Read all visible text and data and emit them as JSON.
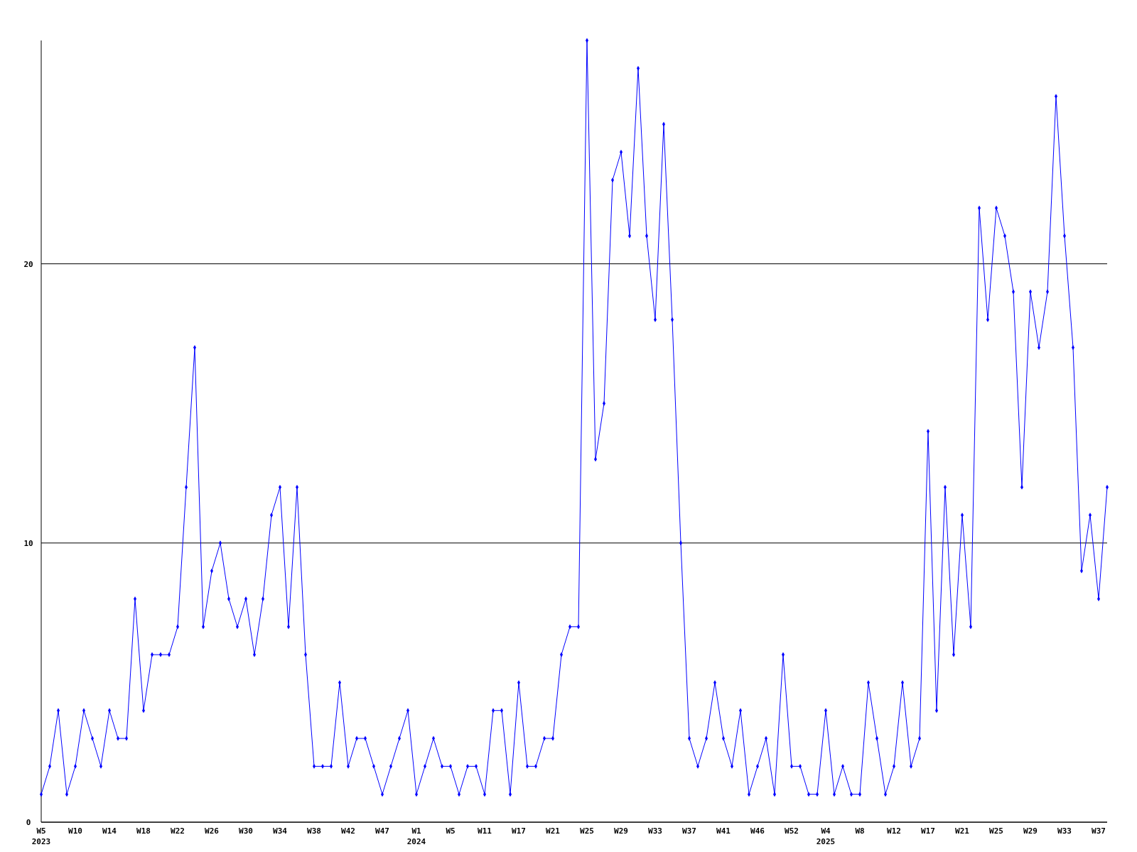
{
  "chart_data": {
    "type": "line",
    "categories": [
      "W5\n2023",
      null,
      null,
      null,
      "W10",
      null,
      null,
      null,
      "W14",
      null,
      null,
      null,
      "W18",
      null,
      null,
      null,
      "W22",
      null,
      null,
      null,
      "W26",
      null,
      null,
      null,
      "W30",
      null,
      null,
      null,
      "W34",
      null,
      null,
      null,
      "W38",
      null,
      null,
      null,
      "W42",
      null,
      null,
      null,
      "W47",
      null,
      null,
      null,
      "W1\n2024",
      null,
      null,
      null,
      "W5",
      null,
      null,
      null,
      "W11",
      null,
      null,
      null,
      "W17",
      null,
      null,
      null,
      "W21",
      null,
      null,
      null,
      "W25",
      null,
      null,
      null,
      "W29",
      null,
      null,
      null,
      "W33",
      null,
      null,
      null,
      "W37",
      null,
      null,
      null,
      "W41",
      null,
      null,
      null,
      "W46",
      null,
      null,
      null,
      "W52",
      null,
      null,
      null,
      "W4\n2025",
      null,
      null,
      null,
      "W8",
      null,
      null,
      null,
      "W12",
      null,
      null,
      null,
      "W17",
      null,
      null,
      null,
      "W21",
      null,
      null,
      null,
      "W25",
      null,
      null,
      null,
      "W29",
      null,
      null,
      null,
      "W33",
      null,
      null,
      null,
      "W37",
      null
    ],
    "series": [
      {
        "color": "#0000ff",
        "values": [
          1,
          2,
          4,
          1,
          2,
          4,
          3,
          2,
          4,
          3,
          3,
          8,
          4,
          6,
          6,
          6,
          7,
          12,
          17,
          7,
          9,
          10,
          8,
          7,
          8,
          6,
          8,
          11,
          12,
          7,
          12,
          6,
          2,
          2,
          2,
          5,
          2,
          3,
          3,
          2,
          1,
          2,
          3,
          4,
          1,
          2,
          3,
          2,
          2,
          1,
          2,
          2,
          1,
          4,
          4,
          1,
          5,
          2,
          2,
          3,
          3,
          6,
          7,
          7,
          28,
          13,
          15,
          23,
          24,
          21,
          27,
          21,
          18,
          25,
          18,
          10,
          3,
          2,
          3,
          5,
          3,
          2,
          4,
          1,
          2,
          3,
          1,
          6,
          2,
          2,
          1,
          1,
          4,
          1,
          2,
          1,
          1,
          5,
          3,
          1,
          2,
          5,
          2,
          3,
          14,
          4,
          12,
          6,
          11,
          7,
          22,
          18,
          22,
          21,
          19,
          12,
          19,
          17,
          19,
          26,
          21,
          17,
          9,
          11,
          8,
          12
        ]
      }
    ],
    "ylim": [
      0,
      28
    ],
    "yticks": [
      0,
      10,
      20
    ],
    "grid": "y",
    "marker": "diamond",
    "line_style": "solid"
  }
}
